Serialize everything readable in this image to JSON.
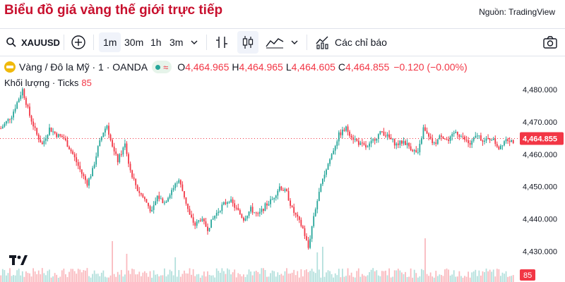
{
  "page": {
    "title": "Biểu đồ giá vàng thế giới trực tiếp",
    "source": "Nguồn: TradingView"
  },
  "toolbar": {
    "symbol": "XAUUSD",
    "intervals": [
      "1m",
      "30m",
      "1h",
      "3m"
    ],
    "selected_interval": "1m",
    "indicators_label": "Các chỉ báo"
  },
  "legend": {
    "name": "Vàng / Đô la Mỹ · 1 · OANDA",
    "wave": "≈",
    "o_label": "O",
    "o": "4,464.965",
    "h_label": "H",
    "h": "4,464.965",
    "l_label": "L",
    "l": "4,464.605",
    "c_label": "C",
    "c": "4,464.855",
    "change": "−0.120 (−0.00%)"
  },
  "volume_legend": {
    "label": "Khối lượng · Ticks",
    "value": "85"
  },
  "colors": {
    "up": "#26a69a",
    "down": "#f23645",
    "title": "#c8102e",
    "price_tag": "#f23645"
  },
  "chart_data": {
    "type": "candlestick",
    "y_axis": {
      "min": 4427,
      "max": 4482,
      "ticks": [
        "4,480.000",
        "4,470.000",
        "4,460.000",
        "4,450.000",
        "4,440.000",
        "4,430.000"
      ],
      "tick_values": [
        4480,
        4470,
        4460,
        4450,
        4440,
        4430
      ],
      "position": "right"
    },
    "current_price": {
      "value": 4464.855,
      "label": "4,464.855"
    },
    "volume_last": {
      "value": 85,
      "label": "85"
    },
    "price_path": [
      [
        0,
        4468
      ],
      [
        3,
        4470
      ],
      [
        6,
        4472
      ],
      [
        9,
        4476
      ],
      [
        12,
        4480
      ],
      [
        16,
        4472
      ],
      [
        20,
        4466
      ],
      [
        23,
        4463
      ],
      [
        27,
        4468
      ],
      [
        31,
        4466
      ],
      [
        35,
        4465
      ],
      [
        40,
        4460
      ],
      [
        45,
        4454
      ],
      [
        48,
        4451
      ],
      [
        51,
        4455
      ],
      [
        54,
        4462
      ],
      [
        57,
        4467
      ],
      [
        59,
        4469
      ],
      [
        62,
        4462
      ],
      [
        65,
        4458
      ],
      [
        69,
        4463
      ],
      [
        72,
        4455
      ],
      [
        76,
        4449
      ],
      [
        80,
        4446
      ],
      [
        84,
        4442
      ],
      [
        87,
        4447
      ],
      [
        91,
        4445
      ],
      [
        95,
        4449
      ],
      [
        99,
        4452
      ],
      [
        102,
        4447
      ],
      [
        105,
        4441
      ],
      [
        108,
        4438
      ],
      [
        111,
        4440
      ],
      [
        115,
        4437
      ],
      [
        119,
        4441
      ],
      [
        123,
        4444
      ],
      [
        127,
        4446
      ],
      [
        131,
        4443
      ],
      [
        135,
        4440
      ],
      [
        139,
        4443
      ],
      [
        143,
        4441
      ],
      [
        147,
        4444
      ],
      [
        151,
        4446
      ],
      [
        155,
        4450
      ],
      [
        159,
        4448
      ],
      [
        162,
        4443
      ],
      [
        165,
        4440
      ],
      [
        168,
        4437
      ],
      [
        171,
        4431
      ],
      [
        174,
        4441
      ],
      [
        177,
        4448
      ],
      [
        180,
        4454
      ],
      [
        184,
        4460
      ],
      [
        188,
        4466
      ],
      [
        192,
        4468
      ],
      [
        196,
        4465
      ],
      [
        200,
        4463
      ],
      [
        204,
        4462
      ],
      [
        208,
        4465
      ],
      [
        212,
        4467
      ],
      [
        216,
        4465
      ],
      [
        220,
        4463
      ],
      [
        224,
        4464
      ],
      [
        228,
        4462
      ],
      [
        232,
        4460
      ],
      [
        235,
        4468
      ],
      [
        238,
        4465
      ],
      [
        241,
        4463
      ],
      [
        245,
        4466
      ],
      [
        249,
        4464
      ],
      [
        253,
        4467
      ],
      [
        257,
        4465
      ],
      [
        261,
        4463
      ],
      [
        265,
        4466
      ],
      [
        269,
        4464
      ],
      [
        273,
        4465
      ],
      [
        277,
        4462
      ],
      [
        281,
        4465
      ],
      [
        285,
        4464
      ]
    ],
    "volume_spikes": [
      [
        62,
        58
      ],
      [
        70,
        40
      ],
      [
        97,
        35
      ],
      [
        176,
        42
      ],
      [
        179,
        50
      ],
      [
        236,
        62
      ]
    ]
  }
}
